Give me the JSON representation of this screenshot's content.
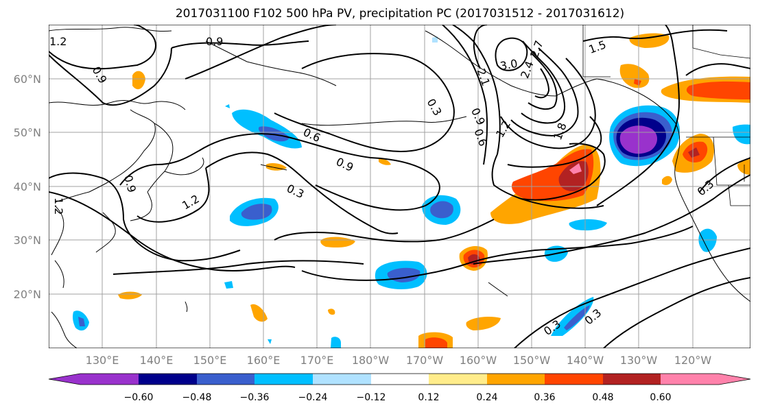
{
  "title": "2017031100 F102 500 hPa PV, precipitation PC (2017031512 - 2017031612)",
  "lat_labels": [
    "60°N",
    "50°N",
    "40°N",
    "30°N",
    "20°N"
  ],
  "lon_labels": [
    "130°E",
    "140°E",
    "150°E",
    "160°E",
    "170°E",
    "180°W",
    "170°W",
    "160°W",
    "150°W",
    "140°W",
    "130°W",
    "120°W"
  ],
  "contour_labels": [
    "1.2",
    "0.9",
    "0.9",
    "0.3",
    "0.6",
    "0.9",
    "0.3",
    "1.2",
    "0.9",
    "0.9",
    "0.6",
    "1.2",
    "1.8",
    "2.1",
    "2.4",
    "2.7",
    "3.0",
    "1.5",
    "0.3",
    "0.3",
    "0.3",
    "1.2"
  ],
  "colorbar": {
    "colors": [
      "#9932cc",
      "#00008b",
      "#3a5fcd",
      "#00bfff",
      "#b0e2ff",
      "#ffffff",
      "#ffec8b",
      "#ffa500",
      "#ff4500",
      "#b22222",
      "#ff82ab"
    ],
    "tick_labels": [
      "−0.60",
      "−0.48",
      "−0.36",
      "−0.24",
      "−0.12",
      "0.12",
      "0.24",
      "0.36",
      "0.48",
      "0.60"
    ]
  }
}
